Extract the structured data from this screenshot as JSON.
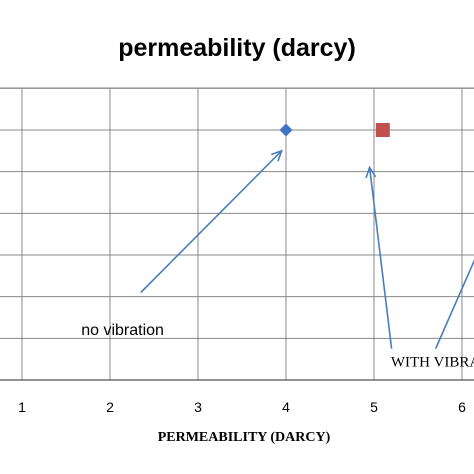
{
  "chart_data": {
    "type": "scatter",
    "title": "permeability (darcy)",
    "xlabel": "PERMEABILITY   (DARCY)",
    "ylabel": "",
    "xlim": [
      0.5,
      6.5
    ],
    "ylim": [
      0,
      9
    ],
    "x_ticks": [
      1,
      2,
      3,
      4,
      5,
      6
    ],
    "grid": true,
    "colors": {
      "series_no_vibration": "#4472c4",
      "series_with_vibration": "#c0504d",
      "arrow": "#4a7ebb",
      "grid": "#888888"
    },
    "series": [
      {
        "marker": "diamond",
        "x": [
          4
        ],
        "y": [
          6
        ]
      },
      {
        "marker": "square",
        "x": [
          5.1
        ],
        "y": [
          6
        ]
      }
    ],
    "annotations": [
      {
        "text": "no vibration",
        "x": 2.2,
        "y": 1.2,
        "style": "sans",
        "arrows": [
          {
            "from": [
              2.35,
              2.1
            ],
            "to": [
              3.95,
              5.5
            ]
          }
        ]
      },
      {
        "text": "WITH VIBRATION",
        "x": 5.95,
        "y": 0.45,
        "style": "serif",
        "arrows": [
          {
            "from": [
              5.2,
              0.75
            ],
            "to": [
              4.95,
              5.1
            ]
          },
          {
            "from": [
              5.7,
              0.75
            ],
            "to": [
              6.5,
              4.6
            ]
          }
        ]
      }
    ]
  }
}
